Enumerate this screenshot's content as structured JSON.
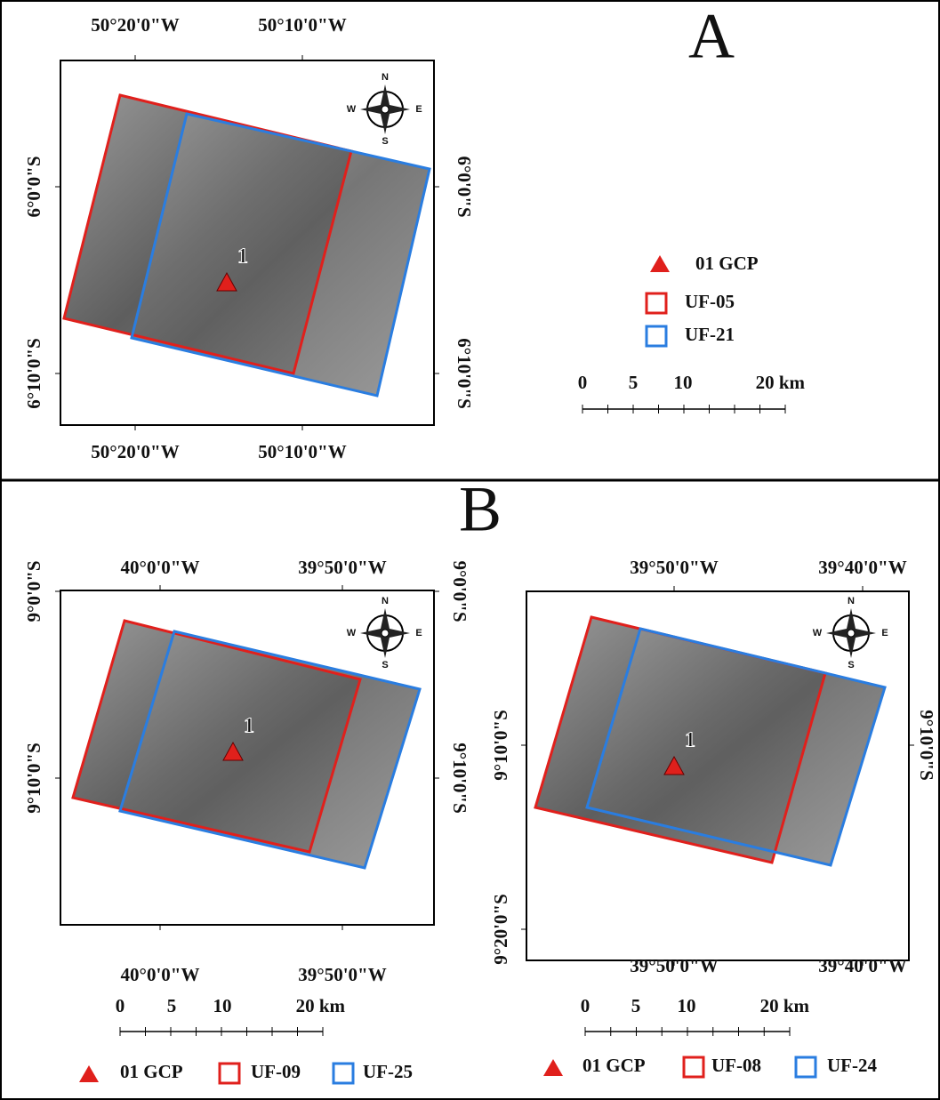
{
  "panels": [
    {
      "title": "A",
      "maps": [
        {
          "top_labels": [
            "50°20'0\"W",
            "50°10'0\"W"
          ],
          "bottom_labels": [
            "50°20'0\"W",
            "50°10'0\"W"
          ],
          "left_labels": [
            "6°0'0\"S",
            "6°10'0\"S"
          ],
          "right_labels": [
            "6°0'0\"S",
            "6°10'0\"S"
          ],
          "gcp_label": "1",
          "compass": [
            "N",
            "E",
            "S",
            "W"
          ],
          "scale_labels": [
            "0",
            "5",
            "10",
            "20 km"
          ],
          "legend": [
            "01 GCP",
            "UF-05",
            "UF-21"
          ]
        }
      ]
    },
    {
      "title": "B",
      "maps": [
        {
          "top_labels": [
            "40°0'0\"W",
            "39°50'0\"W"
          ],
          "bottom_labels": [
            "40°0'0\"W",
            "39°50'0\"W"
          ],
          "left_labels": [
            "9°0'0\"S",
            "9°10'0\"S"
          ],
          "right_labels": [
            "9°0'0\"S",
            "9°10'0\"S"
          ],
          "gcp_label": "1",
          "compass": [
            "N",
            "E",
            "S",
            "W"
          ],
          "scale_labels": [
            "0",
            "5",
            "10",
            "20 km"
          ],
          "legend": [
            "01 GCP",
            "UF-09",
            "UF-25"
          ]
        },
        {
          "top_labels": [
            "39°50'0\"W",
            "39°40'0\"W"
          ],
          "bottom_labels": [
            "39°50'0\"W",
            "39°40'0\"W"
          ],
          "left_labels": [
            "9°10'0\"S",
            "9°20'0\"S"
          ],
          "right_labels": [
            "9°10'0\"S"
          ],
          "gcp_label": "1",
          "compass": [
            "N",
            "E",
            "S",
            "W"
          ],
          "scale_labels": [
            "0",
            "5",
            "10",
            "20 km"
          ],
          "legend": [
            "01 GCP",
            "UF-08",
            "UF-24"
          ]
        }
      ]
    }
  ]
}
